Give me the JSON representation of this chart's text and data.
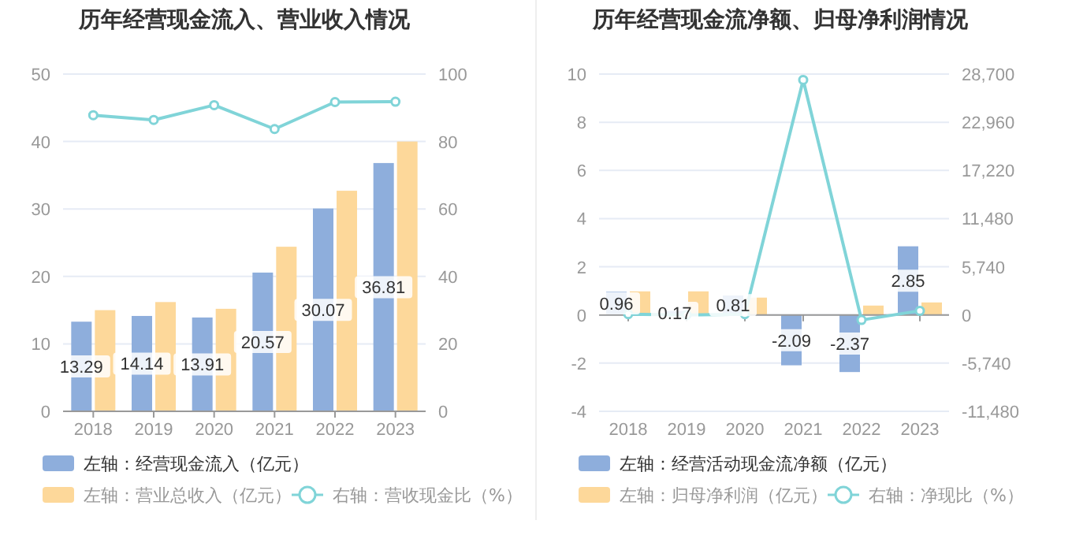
{
  "chart_data": [
    {
      "type": "bar",
      "title": "历年经营现金流入、营业收入情况",
      "categories": [
        "2018",
        "2019",
        "2020",
        "2021",
        "2022",
        "2023"
      ],
      "series": [
        {
          "name": "左轴：经营现金流入（亿元）",
          "color": "#8eaedc",
          "values": [
            13.29,
            14.14,
            13.91,
            20.57,
            30.07,
            36.81
          ],
          "value_labels": [
            "13.29",
            "14.14",
            "13.91",
            "20.57",
            "30.07",
            "36.81"
          ]
        },
        {
          "name": "左轴：营业总收入（亿元）",
          "color": "#fdd89a",
          "values": [
            15.0,
            16.2,
            15.2,
            24.4,
            32.7,
            40.0
          ]
        },
        {
          "name": "右轴：营收现金比（%）",
          "type": "line",
          "axis": "y2",
          "color": "#80d4d8",
          "marker": "circle",
          "values": [
            87.8,
            86.4,
            90.8,
            83.7,
            91.7,
            91.8
          ]
        }
      ],
      "ylim": [
        0,
        50
      ],
      "yticks": [
        0,
        10,
        20,
        30,
        40,
        50
      ],
      "y2lim": [
        0,
        100
      ],
      "y2ticks": [
        0,
        20,
        40,
        60,
        80,
        100
      ],
      "grid": "y",
      "legend": "bottom"
    },
    {
      "type": "bar",
      "title": "历年经营现金流净额、归母净利润情况",
      "categories": [
        "2018",
        "2019",
        "2020",
        "2021",
        "2022",
        "2023"
      ],
      "series": [
        {
          "name": "左轴：经营活动现金流净额（亿元）",
          "color": "#8eaedc",
          "values": [
            0.96,
            0.17,
            0.81,
            -2.09,
            -2.37,
            2.85
          ],
          "value_labels": [
            "0.96",
            "0.17",
            "0.81",
            "-2.09",
            "-2.37",
            "2.85"
          ]
        },
        {
          "name": "左轴：归母净利润（亿元）",
          "color": "#fdd89a",
          "values": [
            0.98,
            0.98,
            0.72,
            null,
            0.39,
            0.52
          ]
        },
        {
          "name": "右轴：净现比（%）",
          "type": "line",
          "axis": "y2",
          "color": "#80d4d8",
          "marker": "circle",
          "values": [
            100,
            0,
            100,
            28000,
            -600,
            500
          ]
        }
      ],
      "ylim": [
        -4,
        10
      ],
      "yticks": [
        -4,
        -2,
        0,
        2,
        4,
        6,
        8,
        10
      ],
      "y2lim": [
        -11480,
        28700
      ],
      "y2ticks": [
        {
          "value": -11480,
          "label": "-11,480"
        },
        {
          "value": -5740,
          "label": "-5,740"
        },
        0,
        {
          "value": 5740,
          "label": "5,740"
        },
        {
          "value": 11480,
          "label": "11,480"
        },
        {
          "value": 17220,
          "label": "17,220"
        },
        {
          "value": 22960,
          "label": "22,960"
        },
        {
          "value": 28700,
          "label": "28,700"
        }
      ],
      "grid": "y",
      "legend": "bottom"
    }
  ]
}
